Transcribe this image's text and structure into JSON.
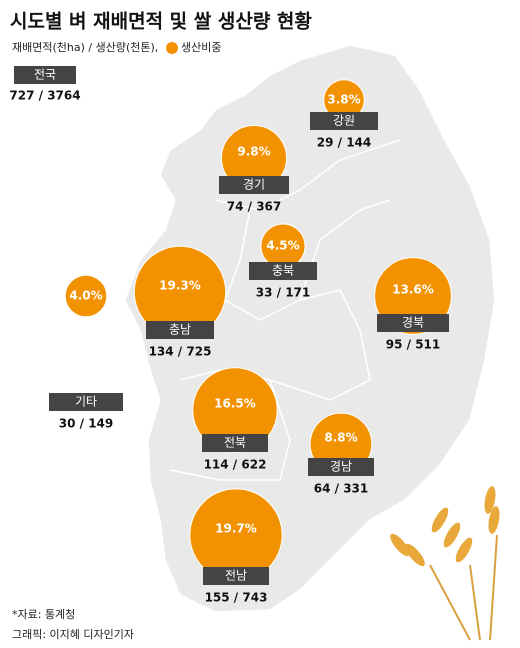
{
  "header": {
    "title": "시도별 벼 재배면적 및 쌀 생산량 현황",
    "legend_units": "재배면적(천ha) / 생산량(천톤),",
    "legend_share": "생산비중"
  },
  "national": {
    "name": "전국",
    "stats": "727 / 3764"
  },
  "regions": [
    {
      "name": "강원",
      "stats": "29 / 144",
      "share": {
        "value": 3.8,
        "label": "3.8%"
      }
    },
    {
      "name": "경기",
      "stats": "74 / 367",
      "share": {
        "value": 9.8,
        "label": "9.8%"
      }
    },
    {
      "name": "충북",
      "stats": "33 / 171",
      "share": {
        "value": 4.5,
        "label": "4.5%"
      }
    },
    {
      "name": "충남",
      "stats": "134 / 725",
      "share": {
        "value": 19.3,
        "label": "19.3%"
      }
    },
    {
      "name": "경북",
      "stats": "95 / 511",
      "share": {
        "value": 13.6,
        "label": "13.6%"
      }
    },
    {
      "name": "기타",
      "stats": "30 / 149",
      "share": {
        "value": 4.0,
        "label": "4.0%"
      }
    },
    {
      "name": "전북",
      "stats": "114 / 622",
      "share": {
        "value": 16.5,
        "label": "16.5%"
      }
    },
    {
      "name": "경남",
      "stats": "64 / 331",
      "share": {
        "value": 8.8,
        "label": "8.8%"
      }
    },
    {
      "name": "전남",
      "stats": "155 / 743",
      "share": {
        "value": 19.7,
        "label": "19.7%"
      }
    }
  ],
  "footer": {
    "source": "*자료: 통계청",
    "credit": "그래픽: 이지혜 디자인기자"
  }
}
